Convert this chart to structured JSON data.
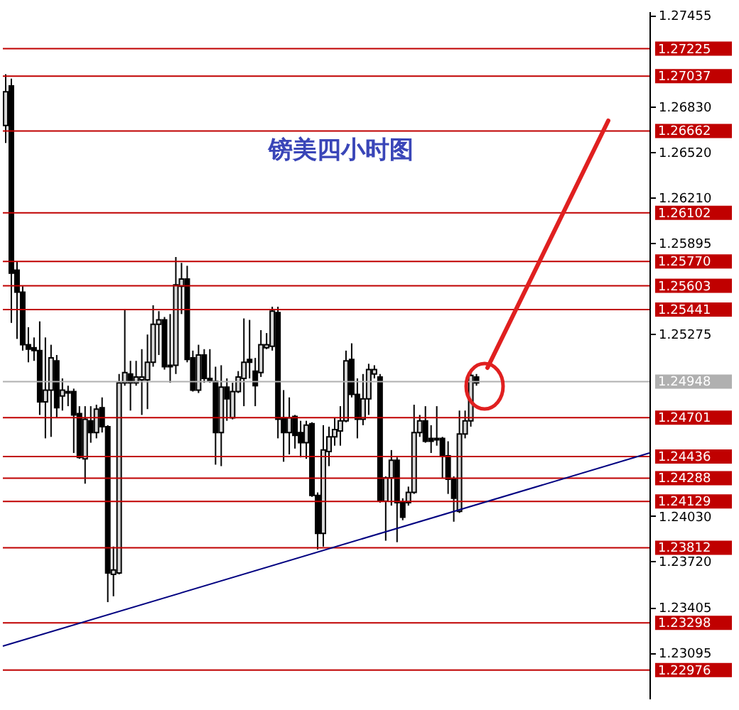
{
  "chart_data": {
    "type": "candlestick",
    "title": "镑美四小时图",
    "categories": [
      null,
      null,
      null,
      null,
      null,
      null,
      null,
      null,
      null,
      null,
      null,
      null,
      null,
      null,
      null,
      null,
      null,
      null,
      null,
      null,
      null,
      null,
      null,
      null,
      null,
      null,
      null,
      null,
      null,
      null,
      null,
      null,
      null,
      null,
      null,
      null,
      null,
      null,
      null,
      null,
      null,
      null,
      null,
      null,
      null,
      null,
      null,
      null,
      null,
      null,
      null,
      null,
      null,
      null,
      null,
      null,
      null,
      null,
      null,
      null,
      null,
      null,
      null,
      null,
      null,
      null,
      null,
      null,
      null,
      null,
      null,
      null,
      null,
      null,
      null,
      null,
      null,
      null,
      null,
      null,
      null,
      null,
      null,
      null,
      null,
      null,
      null,
      null,
      null,
      null,
      null,
      null,
      null,
      null,
      null,
      null,
      null,
      null,
      null,
      null,
      null,
      null,
      null,
      null,
      null,
      null,
      null,
      null,
      null,
      null,
      null,
      null,
      null,
      null
    ],
    "ohlc": [
      [
        1.267,
        1.2705,
        1.2658,
        1.2693
      ],
      [
        1.2697,
        1.2702,
        1.2535,
        1.2569
      ],
      [
        1.2571,
        1.2577,
        1.2524,
        1.2556
      ],
      [
        1.2556,
        1.256,
        1.2516,
        1.252
      ],
      [
        1.252,
        1.2532,
        1.2508,
        1.2517
      ],
      [
        1.2518,
        1.2525,
        1.2509,
        1.2516
      ],
      [
        1.2516,
        1.2536,
        1.2472,
        1.2481
      ],
      [
        1.2481,
        1.2525,
        1.2456,
        1.2489
      ],
      [
        1.2489,
        1.252,
        1.2457,
        1.2511
      ],
      [
        1.2509,
        1.2513,
        1.247,
        1.2477
      ],
      [
        1.2485,
        1.2497,
        1.2475,
        1.2489
      ],
      [
        1.2488,
        1.2492,
        1.2478,
        1.2487
      ],
      [
        1.2488,
        1.249,
        1.2446,
        1.2472
      ],
      [
        1.2473,
        1.2478,
        1.2442,
        1.2443
      ],
      [
        1.2442,
        1.2478,
        1.2425,
        1.2469
      ],
      [
        1.2468,
        1.2478,
        1.2453,
        1.246
      ],
      [
        1.246,
        1.2479,
        1.2456,
        1.2476
      ],
      [
        1.2477,
        1.2484,
        1.246,
        1.2464
      ],
      [
        1.2464,
        1.2465,
        1.2344,
        1.2364
      ],
      [
        1.2363,
        1.2382,
        1.2348,
        1.2366
      ],
      [
        1.2364,
        1.25,
        1.2363,
        1.2494
      ],
      [
        1.2494,
        1.2544,
        1.2492,
        1.2501
      ],
      [
        1.25,
        1.2509,
        1.2475,
        1.2494
      ],
      [
        1.2494,
        1.2509,
        1.2492,
        1.2498
      ],
      [
        1.2496,
        1.2517,
        1.2472,
        1.2498
      ],
      [
        1.2496,
        1.2527,
        1.2476,
        1.2508
      ],
      [
        1.2508,
        1.2547,
        1.2505,
        1.2534
      ],
      [
        1.2534,
        1.2543,
        1.2513,
        1.2537
      ],
      [
        1.2537,
        1.2539,
        1.2503,
        1.2505
      ],
      [
        1.2506,
        1.2541,
        1.2494,
        1.2505
      ],
      [
        1.2506,
        1.258,
        1.25,
        1.2561
      ],
      [
        1.256,
        1.2576,
        1.2541,
        1.2565
      ],
      [
        1.2565,
        1.2574,
        1.2508,
        1.251
      ],
      [
        1.2511,
        1.2516,
        1.2488,
        1.2489
      ],
      [
        1.2489,
        1.252,
        1.2487,
        1.2513
      ],
      [
        1.2513,
        1.2517,
        1.2494,
        1.2497
      ],
      [
        1.2497,
        1.2517,
        1.2494,
        1.2495
      ],
      [
        1.2495,
        1.2505,
        1.2438,
        1.246
      ],
      [
        1.246,
        1.2506,
        1.2437,
        1.2491
      ],
      [
        1.2491,
        1.2497,
        1.2468,
        1.2483
      ],
      [
        1.247,
        1.2494,
        1.2469,
        1.2488
      ],
      [
        1.2488,
        1.2502,
        1.2487,
        1.2498
      ],
      [
        1.2497,
        1.2538,
        1.2478,
        1.2508
      ],
      [
        1.251,
        1.2537,
        1.2497,
        1.2508
      ],
      [
        1.2502,
        1.2511,
        1.2478,
        1.2492
      ],
      [
        1.2501,
        1.253,
        1.2498,
        1.252
      ],
      [
        1.2518,
        1.2528,
        1.2517,
        1.252
      ],
      [
        1.2519,
        1.2546,
        1.2516,
        1.2543
      ],
      [
        1.2542,
        1.2546,
        1.2456,
        1.2469
      ],
      [
        1.247,
        1.2489,
        1.244,
        1.246
      ],
      [
        1.246,
        1.2484,
        1.2445,
        1.247
      ],
      [
        1.2471,
        1.2472,
        1.2449,
        1.2458
      ],
      [
        1.246,
        1.2468,
        1.2443,
        1.2453
      ],
      [
        1.2453,
        1.2468,
        1.2442,
        1.2465
      ],
      [
        1.2466,
        1.2467,
        1.2416,
        1.2417
      ],
      [
        1.2417,
        1.2419,
        1.238,
        1.2391
      ],
      [
        1.2391,
        1.2465,
        1.2382,
        1.2448
      ],
      [
        1.2447,
        1.2464,
        1.2437,
        1.2457
      ],
      [
        1.2457,
        1.247,
        1.2451,
        1.2462
      ],
      [
        1.2461,
        1.2478,
        1.2451,
        1.2468
      ],
      [
        1.2468,
        1.2516,
        1.2467,
        1.2509
      ],
      [
        1.251,
        1.2521,
        1.2484,
        1.2486
      ],
      [
        1.2486,
        1.2497,
        1.2456,
        1.2469
      ],
      [
        1.2469,
        1.25,
        1.2465,
        1.2483
      ],
      [
        1.2483,
        1.2507,
        1.2472,
        1.2503
      ],
      [
        1.25,
        1.2506,
        1.2497,
        1.2503
      ],
      [
        1.2498,
        1.25,
        1.2412,
        1.2413
      ],
      [
        1.2413,
        1.243,
        1.2386,
        1.2429
      ],
      [
        1.2429,
        1.2448,
        1.241,
        1.2441
      ],
      [
        1.2441,
        1.2443,
        1.2385,
        1.2412
      ],
      [
        1.2412,
        1.2415,
        1.24,
        1.2402
      ],
      [
        1.2412,
        1.2423,
        1.241,
        1.2419
      ],
      [
        1.2419,
        1.2479,
        1.2418,
        1.246
      ],
      [
        1.246,
        1.2472,
        1.2457,
        1.2468
      ],
      [
        1.2468,
        1.2478,
        1.2453,
        1.2454
      ],
      [
        1.2456,
        1.2465,
        1.2446,
        1.2454
      ],
      [
        1.2456,
        1.2478,
        1.2451,
        1.2455
      ],
      [
        1.2456,
        1.2457,
        1.2429,
        1.2444
      ],
      [
        1.2444,
        1.2454,
        1.2418,
        1.2428
      ],
      [
        1.2428,
        1.243,
        1.2399,
        1.2415
      ],
      [
        1.2406,
        1.2475,
        1.2405,
        1.2459
      ],
      [
        1.2459,
        1.2475,
        1.2456,
        1.2468
      ],
      [
        1.2468,
        1.2503,
        1.2464,
        1.2499
      ],
      [
        1.2498,
        1.25,
        1.2492,
        1.2494
      ],
      null,
      null,
      null,
      null,
      null,
      null,
      null,
      null,
      null,
      null,
      null,
      null,
      null,
      null,
      null,
      null,
      null,
      null,
      null,
      null,
      null,
      null,
      null,
      null,
      null,
      null,
      null,
      null,
      null,
      null
    ],
    "ylim": [
      1.2278,
      1.2748
    ],
    "yticks": [
      1.27455,
      {
        "value": 1.2683,
        "label": "1.26830"
      },
      {
        "value": 1.2652,
        "label": "1.26520"
      },
      {
        "value": 1.2621,
        "label": "1.26210"
      },
      1.25895,
      1.25275,
      {
        "value": 1.2403,
        "label": "1.24030"
      },
      {
        "value": 1.2372,
        "label": "1.23720"
      },
      1.23405,
      1.23095
    ],
    "tick_labels": "y",
    "ref_lines": [
      {
        "axis": "y",
        "value": 1.27225,
        "label": "1.27225",
        "color": "#c00000"
      },
      {
        "axis": "y",
        "value": 1.27037,
        "label": "1.27037",
        "color": "#c00000"
      },
      {
        "axis": "y",
        "value": 1.26662,
        "label": "1.26662",
        "color": "#c00000"
      },
      {
        "axis": "y",
        "value": 1.26102,
        "label": "1.26102",
        "color": "#c00000"
      },
      {
        "axis": "y",
        "value": 1.2577,
        "label": "1.25770",
        "color": "#c00000"
      },
      {
        "axis": "y",
        "value": 1.25603,
        "label": "1.25603",
        "color": "#c00000"
      },
      {
        "axis": "y",
        "value": 1.25441,
        "label": "1.25441",
        "color": "#c00000"
      },
      {
        "axis": "y",
        "value": 1.24948,
        "label": "1.24948",
        "color": "#b0b0b0"
      },
      {
        "axis": "y",
        "value": 1.24701,
        "label": "1.24701",
        "color": "#c00000"
      },
      {
        "axis": "y",
        "value": 1.24436,
        "label": "1.24436",
        "color": "#c00000"
      },
      {
        "axis": "y",
        "value": 1.24288,
        "label": "1.24288",
        "color": "#c00000"
      },
      {
        "axis": "y",
        "value": 1.24129,
        "label": "1.24129",
        "color": "#c00000"
      },
      {
        "axis": "y",
        "value": 1.23812,
        "label": "1.23812",
        "color": "#c00000"
      },
      {
        "axis": "y",
        "value": 1.23298,
        "label": "1.23298",
        "color": "#c00000"
      },
      {
        "axis": "y",
        "value": 1.22976,
        "label": "1.22976",
        "color": "#c00000"
      }
    ],
    "grid": false
  }
}
